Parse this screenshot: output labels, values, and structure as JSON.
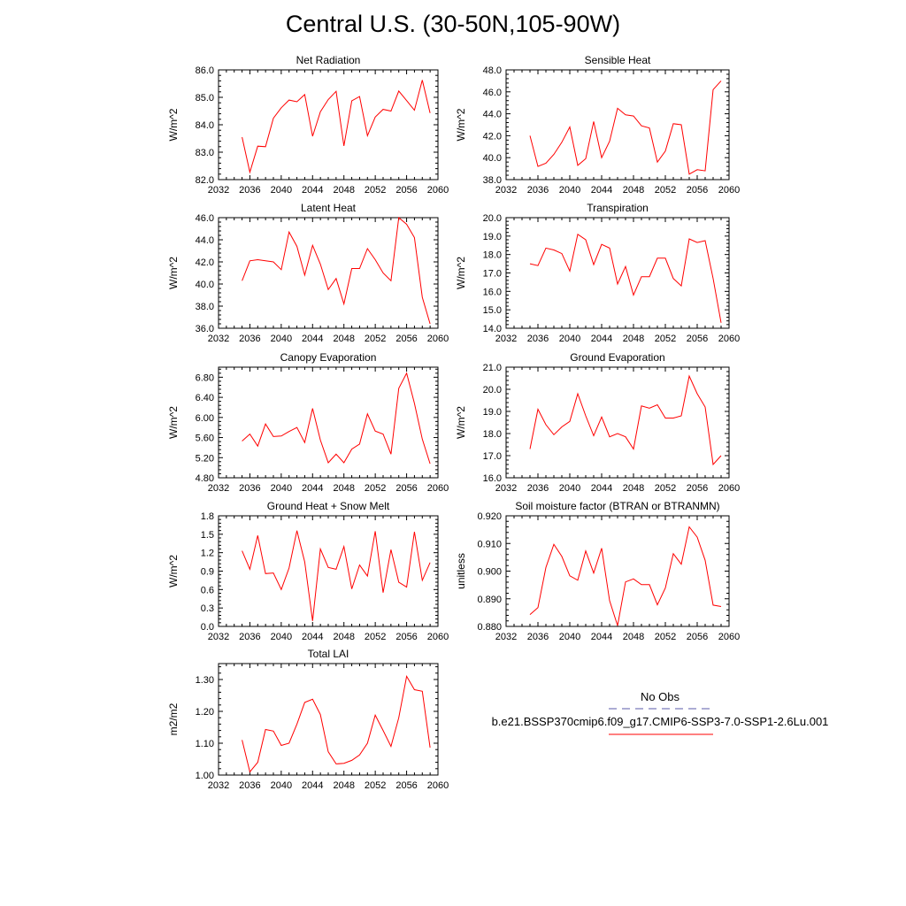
{
  "title": "Central U.S. (30-50N,105-90W)",
  "legend": {
    "entries": [
      {
        "label": "No Obs",
        "style": "dashed",
        "color": "#5a5aa8"
      },
      {
        "label": "b.e21.BSSP370cmip6.f09_g17.CMIP6-SSP3-7.0-SSP1-2.6Lu.001",
        "style": "solid",
        "color": "#ff0000"
      }
    ]
  },
  "series_color": "#ff0000",
  "chart_data": [
    {
      "type": "line",
      "title": "Net Radiation",
      "ylabel": "W/m^2",
      "xlim": [
        2032,
        2060
      ],
      "ylim": [
        82.0,
        86.0
      ],
      "xticks": [
        "2032",
        "2036",
        "2040",
        "2044",
        "2048",
        "2052",
        "2056",
        "2060"
      ],
      "yticks": [
        "82.0",
        "83.0",
        "84.0",
        "85.0",
        "86.0"
      ],
      "x": [
        2035,
        2036,
        2037,
        2038,
        2039,
        2040,
        2041,
        2042,
        2043,
        2044,
        2045,
        2046,
        2047,
        2048,
        2049,
        2050,
        2051,
        2052,
        2053,
        2054,
        2055,
        2056,
        2057,
        2058,
        2059
      ],
      "y": [
        83.55,
        82.27,
        83.22,
        83.2,
        84.24,
        84.62,
        84.9,
        84.84,
        85.1,
        83.58,
        84.47,
        84.92,
        85.22,
        83.23,
        84.87,
        85.03,
        83.6,
        84.28,
        84.56,
        84.5,
        85.23,
        84.88,
        84.53,
        85.63,
        84.43
      ]
    },
    {
      "type": "line",
      "title": "Sensible Heat",
      "ylabel": "W/m^2",
      "xlim": [
        2032,
        2060
      ],
      "ylim": [
        38.0,
        48.0
      ],
      "xticks": [
        "2032",
        "2036",
        "2040",
        "2044",
        "2048",
        "2052",
        "2056",
        "2060"
      ],
      "yticks": [
        "38.0",
        "40.0",
        "42.0",
        "44.0",
        "46.0",
        "48.0"
      ],
      "x": [
        2035,
        2036,
        2037,
        2038,
        2039,
        2040,
        2041,
        2042,
        2043,
        2044,
        2045,
        2046,
        2047,
        2048,
        2049,
        2050,
        2051,
        2052,
        2053,
        2054,
        2055,
        2056,
        2057,
        2058,
        2059
      ],
      "y": [
        42.0,
        39.2,
        39.5,
        40.3,
        41.4,
        42.8,
        39.3,
        39.9,
        43.3,
        40.0,
        41.5,
        44.5,
        43.9,
        43.8,
        42.9,
        42.7,
        39.6,
        40.6,
        43.1,
        43.0,
        38.5,
        38.9,
        38.8,
        46.2,
        47.0
      ]
    },
    {
      "type": "line",
      "title": "Latent Heat",
      "ylabel": "W/m^2",
      "xlim": [
        2032,
        2060
      ],
      "ylim": [
        36.0,
        46.0
      ],
      "xticks": [
        "2032",
        "2036",
        "2040",
        "2044",
        "2048",
        "2052",
        "2056",
        "2060"
      ],
      "yticks": [
        "36.0",
        "38.0",
        "40.0",
        "42.0",
        "44.0",
        "46.0"
      ],
      "x": [
        2035,
        2036,
        2037,
        2038,
        2039,
        2040,
        2041,
        2042,
        2043,
        2044,
        2045,
        2046,
        2047,
        2048,
        2049,
        2050,
        2051,
        2052,
        2053,
        2054,
        2055,
        2056,
        2057,
        2058,
        2059
      ],
      "y": [
        40.3,
        42.1,
        42.2,
        42.1,
        42.0,
        41.3,
        44.7,
        43.4,
        40.8,
        43.5,
        41.8,
        39.5,
        40.5,
        38.2,
        41.4,
        41.4,
        43.2,
        42.2,
        41.0,
        40.3,
        46.0,
        45.4,
        44.2,
        38.8,
        36.4
      ]
    },
    {
      "type": "line",
      "title": "Transpiration",
      "ylabel": "W/m^2",
      "xlim": [
        2032,
        2060
      ],
      "ylim": [
        14.0,
        20.0
      ],
      "xticks": [
        "2032",
        "2036",
        "2040",
        "2044",
        "2048",
        "2052",
        "2056",
        "2060"
      ],
      "yticks": [
        "14.0",
        "15.0",
        "16.0",
        "17.0",
        "18.0",
        "19.0",
        "20.0"
      ],
      "x": [
        2035,
        2036,
        2037,
        2038,
        2039,
        2040,
        2041,
        2042,
        2043,
        2044,
        2045,
        2046,
        2047,
        2048,
        2049,
        2050,
        2051,
        2052,
        2053,
        2054,
        2055,
        2056,
        2057,
        2058,
        2059
      ],
      "y": [
        17.5,
        17.4,
        18.35,
        18.25,
        18.05,
        17.1,
        19.1,
        18.8,
        17.45,
        18.55,
        18.35,
        16.4,
        17.35,
        15.8,
        16.8,
        16.8,
        17.8,
        17.8,
        16.7,
        16.3,
        18.85,
        18.65,
        18.75,
        16.7,
        14.3
      ]
    },
    {
      "type": "line",
      "title": "Canopy Evaporation",
      "ylabel": "W/m^2",
      "xlim": [
        2032,
        2060
      ],
      "ylim": [
        4.8,
        7.0
      ],
      "xticks": [
        "2032",
        "2036",
        "2040",
        "2044",
        "2048",
        "2052",
        "2056",
        "2060"
      ],
      "yticks": [
        "4.80",
        "5.20",
        "5.60",
        "6.00",
        "6.40",
        "6.80"
      ],
      "x": [
        2035,
        2036,
        2037,
        2038,
        2039,
        2040,
        2041,
        2042,
        2043,
        2044,
        2045,
        2046,
        2047,
        2048,
        2049,
        2050,
        2051,
        2052,
        2053,
        2054,
        2055,
        2056,
        2057,
        2058,
        2059
      ],
      "y": [
        5.53,
        5.67,
        5.43,
        5.87,
        5.62,
        5.63,
        5.72,
        5.8,
        5.5,
        6.18,
        5.55,
        5.1,
        5.27,
        5.1,
        5.37,
        5.47,
        6.07,
        5.73,
        5.67,
        5.27,
        6.58,
        6.88,
        6.28,
        5.57,
        5.08
      ]
    },
    {
      "type": "line",
      "title": "Ground Evaporation",
      "ylabel": "W/m^2",
      "xlim": [
        2032,
        2060
      ],
      "ylim": [
        16.0,
        21.0
      ],
      "xticks": [
        "2032",
        "2036",
        "2040",
        "2044",
        "2048",
        "2052",
        "2056",
        "2060"
      ],
      "yticks": [
        "16.0",
        "17.0",
        "18.0",
        "19.0",
        "20.0",
        "21.0"
      ],
      "x": [
        2035,
        2036,
        2037,
        2038,
        2039,
        2040,
        2041,
        2042,
        2043,
        2044,
        2045,
        2046,
        2047,
        2048,
        2049,
        2050,
        2051,
        2052,
        2053,
        2054,
        2055,
        2056,
        2057,
        2058,
        2059
      ],
      "y": [
        17.3,
        19.1,
        18.4,
        17.95,
        18.3,
        18.55,
        19.8,
        18.8,
        17.9,
        18.75,
        17.85,
        18.0,
        17.85,
        17.3,
        19.25,
        19.15,
        19.3,
        18.7,
        18.7,
        18.8,
        20.6,
        19.8,
        19.2,
        16.6,
        17.0
      ]
    },
    {
      "type": "line",
      "title": "Ground Heat + Snow Melt",
      "ylabel": "W/m^2",
      "xlim": [
        2032,
        2060
      ],
      "ylim": [
        0.0,
        1.8
      ],
      "xticks": [
        "2032",
        "2036",
        "2040",
        "2044",
        "2048",
        "2052",
        "2056",
        "2060"
      ],
      "yticks": [
        "0.0",
        "0.3",
        "0.6",
        "0.9",
        "1.2",
        "1.5",
        "1.8"
      ],
      "x": [
        2035,
        2036,
        2037,
        2038,
        2039,
        2040,
        2041,
        2042,
        2043,
        2044,
        2045,
        2046,
        2047,
        2048,
        2049,
        2050,
        2051,
        2052,
        2053,
        2054,
        2055,
        2056,
        2057,
        2058,
        2059
      ],
      "y": [
        1.23,
        0.93,
        1.48,
        0.86,
        0.87,
        0.6,
        0.95,
        1.56,
        1.05,
        0.09,
        1.26,
        0.96,
        0.93,
        1.3,
        0.61,
        1.0,
        0.82,
        1.55,
        0.55,
        1.25,
        0.72,
        0.64,
        1.54,
        0.75,
        1.04
      ]
    },
    {
      "type": "line",
      "title": "Soil moisture factor (BTRAN or BTRANMN)",
      "ylabel": "unitless",
      "xlim": [
        2032,
        2060
      ],
      "ylim": [
        0.88,
        0.92
      ],
      "xticks": [
        "2032",
        "2036",
        "2040",
        "2044",
        "2048",
        "2052",
        "2056",
        "2060"
      ],
      "yticks": [
        "0.880",
        "0.890",
        "0.900",
        "0.910",
        "0.920"
      ],
      "x": [
        2035,
        2036,
        2037,
        2038,
        2039,
        2040,
        2041,
        2042,
        2043,
        2044,
        2045,
        2046,
        2047,
        2048,
        2049,
        2050,
        2051,
        2052,
        2053,
        2054,
        2055,
        2056,
        2057,
        2058,
        2059
      ],
      "y": [
        0.8843,
        0.8868,
        0.9013,
        0.9097,
        0.9053,
        0.8983,
        0.8967,
        0.9073,
        0.8993,
        0.9083,
        0.8893,
        0.8803,
        0.8961,
        0.8972,
        0.8951,
        0.8951,
        0.8878,
        0.8939,
        0.9063,
        0.9025,
        0.916,
        0.9123,
        0.9039,
        0.8877,
        0.8872
      ]
    },
    {
      "type": "line",
      "title": "Total LAI",
      "ylabel": "m2/m2",
      "xlim": [
        2032,
        2060
      ],
      "ylim": [
        1.0,
        1.35
      ],
      "xticks": [
        "2032",
        "2036",
        "2040",
        "2044",
        "2048",
        "2052",
        "2056",
        "2060"
      ],
      "yticks": [
        "1.00",
        "1.10",
        "1.20",
        "1.30"
      ],
      "x": [
        2035,
        2036,
        2037,
        2038,
        2039,
        2040,
        2041,
        2042,
        2043,
        2044,
        2045,
        2046,
        2047,
        2048,
        2049,
        2050,
        2051,
        2052,
        2053,
        2054,
        2055,
        2056,
        2057,
        2058,
        2059
      ],
      "y": [
        1.11,
        1.01,
        1.04,
        1.143,
        1.138,
        1.093,
        1.1,
        1.16,
        1.228,
        1.238,
        1.19,
        1.073,
        1.035,
        1.037,
        1.046,
        1.063,
        1.1,
        1.188,
        1.14,
        1.09,
        1.18,
        1.31,
        1.268,
        1.263,
        1.086
      ]
    }
  ]
}
